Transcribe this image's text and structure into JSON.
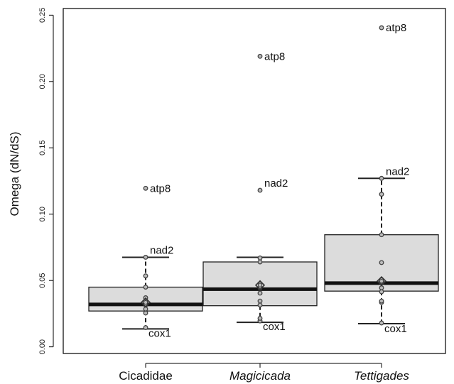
{
  "chart_data": {
    "type": "box",
    "title": "",
    "xlabel": "",
    "ylabel": "Omega (dN/dS)",
    "ylim": [
      -0.005,
      0.255
    ],
    "yticks": [
      0.0,
      0.05,
      0.1,
      0.15,
      0.2,
      0.25
    ],
    "ytick_labels": [
      "0.00",
      "0.05",
      "0.10",
      "0.15",
      "0.20",
      "0.25"
    ],
    "categories": [
      "Cicadidae",
      "Magicicada",
      "Tettigades"
    ],
    "category_italic": [
      false,
      true,
      true
    ],
    "colors": {
      "box_fill": "#dcdcdc",
      "median": "#111111",
      "outline": "#222222",
      "point": "#444444"
    },
    "boxes": [
      {
        "category": "Cicadidae",
        "whisker_low": 0.0135,
        "q1": 0.027,
        "median": 0.032,
        "q3": 0.045,
        "whisker_high": 0.0675,
        "mean": 0.0335,
        "points": [
          0.0145,
          0.0255,
          0.0285,
          0.0315,
          0.0345,
          0.037,
          0.045,
          0.0535,
          0.0675,
          0.1195
        ],
        "labels": [
          {
            "text": "atp8",
            "y": 0.1195
          },
          {
            "text": "nad2",
            "y": 0.0675
          },
          {
            "text": "cox1",
            "y": 0.0145
          }
        ]
      },
      {
        "category": "Magicicada",
        "whisker_low": 0.0185,
        "q1": 0.031,
        "median": 0.0435,
        "q3": 0.064,
        "whisker_high": 0.0675,
        "mean": 0.0465,
        "points": [
          0.0195,
          0.0215,
          0.0315,
          0.0345,
          0.0405,
          0.0445,
          0.0475,
          0.064,
          0.067,
          0.118,
          0.219
        ],
        "labels": [
          {
            "text": "atp8",
            "y": 0.219
          },
          {
            "text": "nad2",
            "y": 0.118
          },
          {
            "text": "cox1",
            "y": 0.0195
          }
        ]
      },
      {
        "category": "Tettigades",
        "whisker_low": 0.0175,
        "q1": 0.042,
        "median": 0.048,
        "q3": 0.0845,
        "whisker_high": 0.127,
        "mean": 0.0495,
        "points": [
          0.018,
          0.0335,
          0.0345,
          0.0415,
          0.0445,
          0.049,
          0.0505,
          0.0635,
          0.0845,
          0.115,
          0.127,
          0.2405
        ],
        "labels": [
          {
            "text": "atp8",
            "y": 0.2405
          },
          {
            "text": "nad2",
            "y": 0.127
          },
          {
            "text": "cox1",
            "y": 0.018
          }
        ]
      }
    ]
  }
}
